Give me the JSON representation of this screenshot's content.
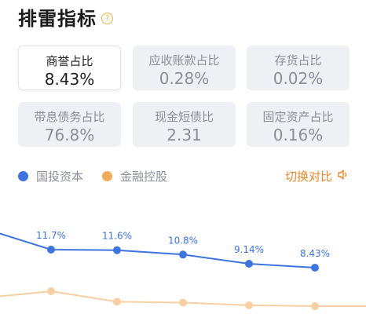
{
  "header": {
    "title": "排雷指标",
    "help_icon": "?"
  },
  "metrics": [
    {
      "label": "商誉占比",
      "value": "8.43%",
      "active": true
    },
    {
      "label": "应收账款占比",
      "value": "0.28%",
      "active": false
    },
    {
      "label": "存货占比",
      "value": "0.02%",
      "active": false
    },
    {
      "label": "带息债务占比",
      "value": "76.8%",
      "active": false
    },
    {
      "label": "现金短债比",
      "value": "2.31",
      "active": false
    },
    {
      "label": "固定资产占比",
      "value": "0.16%",
      "active": false
    }
  ],
  "legend": {
    "series1": "国投资本",
    "series2": "金融控股",
    "switch_label": "切换对比",
    "switch_icon": "speaker-icon"
  },
  "colors": {
    "series1": "#3d74e0",
    "series2": "#f4a95a",
    "series2_line": "#f8cfa0",
    "accent": "#e9892f",
    "help": "#e9b24a"
  },
  "chart_data": {
    "type": "line",
    "series": [
      {
        "name": "国投资本",
        "values": [
          11.7,
          11.6,
          10.8,
          9.14,
          8.43
        ],
        "labels": [
          "11.7%",
          "11.6%",
          "10.8%",
          "9.14%",
          "8.43%"
        ]
      },
      {
        "name": "金融控股",
        "values": [
          3.6,
          3.0,
          2.95,
          2.8,
          2.75
        ]
      }
    ]
  }
}
